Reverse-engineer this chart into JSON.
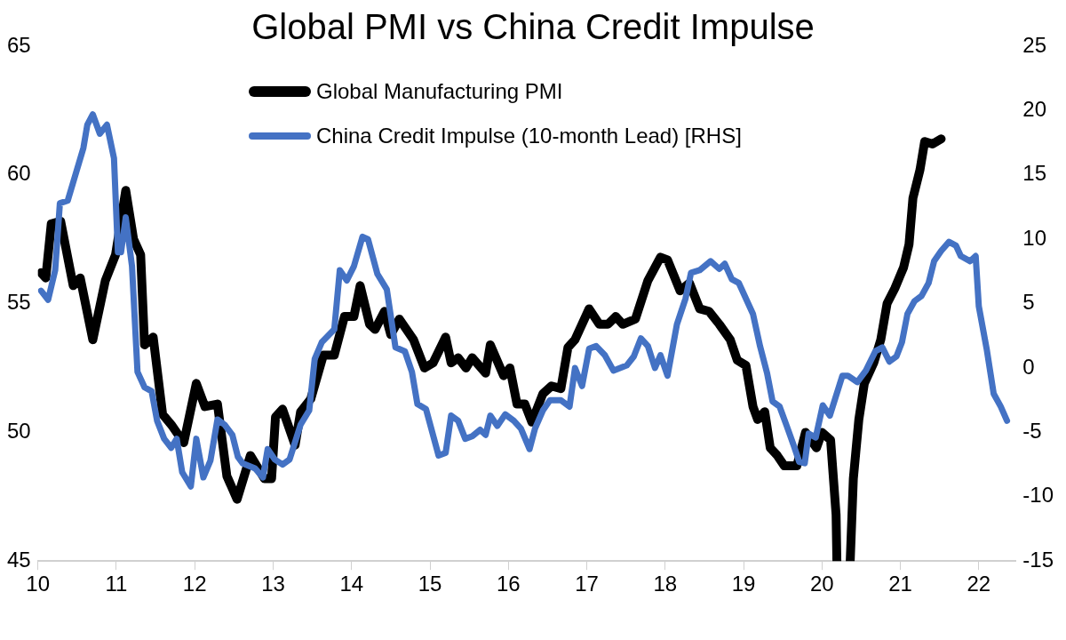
{
  "chart_data": {
    "type": "line",
    "title": "Global PMI vs China Credit Impulse",
    "legend": "top",
    "grid": false,
    "marker": "none",
    "line_style": "solid",
    "xlim": [
      10,
      22.47
    ],
    "xticks": [
      10,
      11,
      12,
      13,
      14,
      15,
      16,
      17,
      18,
      19,
      20,
      21,
      22
    ],
    "ylim": [
      45,
      65
    ],
    "yticks": [
      45,
      50,
      55,
      60,
      65
    ],
    "y2lim": [
      -15,
      25
    ],
    "y2ticks": [
      -15,
      -10,
      -5,
      0,
      5,
      10,
      15,
      20,
      25
    ],
    "series": [
      {
        "name": "Global Manufacturing PMI",
        "color": "#000000",
        "x": [
          10.04,
          10.1,
          10.17,
          10.29,
          10.45,
          10.54,
          10.7,
          10.86,
          10.99,
          11.12,
          11.22,
          11.31,
          11.36,
          11.47,
          11.59,
          11.7,
          11.86,
          12.02,
          12.13,
          12.29,
          12.41,
          12.54,
          12.71,
          12.89,
          12.98,
          13.03,
          13.12,
          13.28,
          13.35,
          13.48,
          13.64,
          13.78,
          13.91,
          14.03,
          14.11,
          14.23,
          14.3,
          14.42,
          14.5,
          14.61,
          14.79,
          14.93,
          15.04,
          15.2,
          15.27,
          15.36,
          15.46,
          15.54,
          15.71,
          15.77,
          15.94,
          16.02,
          16.11,
          16.21,
          16.3,
          16.44,
          16.55,
          16.67,
          16.76,
          16.85,
          17.03,
          17.16,
          17.27,
          17.37,
          17.46,
          17.62,
          17.78,
          17.94,
          18.03,
          18.19,
          18.31,
          18.44,
          18.56,
          18.69,
          18.83,
          18.92,
          19.03,
          19.12,
          19.18,
          19.27,
          19.34,
          19.43,
          19.52,
          19.68,
          19.79,
          19.93,
          20.0,
          20.11,
          20.18,
          20.19,
          20.27,
          20.36,
          20.4,
          20.47,
          20.54,
          20.66,
          20.75,
          20.83,
          20.93,
          21.04,
          21.11,
          21.16,
          21.25,
          21.31,
          21.41,
          21.52
        ],
        "values": [
          56.2,
          56.0,
          58.1,
          58.2,
          55.7,
          56.0,
          53.6,
          55.9,
          56.9,
          59.4,
          57.5,
          56.9,
          53.4,
          53.7,
          50.7,
          50.3,
          49.6,
          51.9,
          51.0,
          51.1,
          48.3,
          47.4,
          49.1,
          48.2,
          48.2,
          50.6,
          50.9,
          49.5,
          50.8,
          51.3,
          53.0,
          53.0,
          54.5,
          54.5,
          55.7,
          54.2,
          54.0,
          54.7,
          53.8,
          54.4,
          53.6,
          52.5,
          52.7,
          53.7,
          52.7,
          52.9,
          52.5,
          52.9,
          52.3,
          53.4,
          52.2,
          52.5,
          51.1,
          51.1,
          50.4,
          51.5,
          51.8,
          51.7,
          53.3,
          53.6,
          54.8,
          54.2,
          54.2,
          54.5,
          54.2,
          54.4,
          55.9,
          56.8,
          56.7,
          55.5,
          55.8,
          54.8,
          54.7,
          54.2,
          53.6,
          52.8,
          52.6,
          51.0,
          50.5,
          50.8,
          49.4,
          49.1,
          48.7,
          48.7,
          50.0,
          49.4,
          50.0,
          49.7,
          46.8,
          45,
          null,
          45,
          48.2,
          50.5,
          51.9,
          52.7,
          53.6,
          55.0,
          55.6,
          56.4,
          57.3,
          59.1,
          60.2,
          61.3,
          61.2,
          61.4
        ]
      },
      {
        "name": "China Credit Impulse (10-month Lead) [RHS]",
        "color": "#4472c4",
        "axis": "y2",
        "x": [
          10.04,
          10.13,
          10.22,
          10.28,
          10.38,
          10.58,
          10.63,
          10.7,
          10.79,
          10.88,
          10.97,
          11.02,
          11.06,
          11.12,
          11.2,
          11.27,
          11.36,
          11.45,
          11.52,
          11.61,
          11.7,
          11.77,
          11.84,
          11.95,
          12.02,
          12.11,
          12.2,
          12.29,
          12.38,
          12.48,
          12.55,
          12.61,
          12.77,
          12.87,
          12.93,
          13.02,
          13.12,
          13.21,
          13.35,
          13.46,
          13.53,
          13.62,
          13.78,
          13.85,
          13.94,
          14.03,
          14.14,
          14.21,
          14.33,
          14.45,
          14.56,
          14.68,
          14.77,
          14.84,
          14.95,
          15.11,
          15.2,
          15.27,
          15.36,
          15.45,
          15.54,
          15.64,
          15.71,
          15.77,
          15.86,
          15.96,
          16.07,
          16.16,
          16.27,
          16.34,
          16.44,
          16.53,
          16.67,
          16.78,
          16.85,
          16.94,
          17.03,
          17.12,
          17.23,
          17.34,
          17.51,
          17.6,
          17.69,
          17.78,
          17.87,
          17.94,
          18.03,
          18.15,
          18.26,
          18.33,
          18.44,
          18.58,
          18.69,
          18.76,
          18.85,
          18.94,
          19.12,
          19.21,
          19.3,
          19.37,
          19.46,
          19.55,
          19.65,
          19.71,
          19.78,
          19.83,
          19.92,
          20.01,
          20.1,
          20.26,
          20.33,
          20.45,
          20.56,
          20.68,
          20.77,
          20.86,
          20.95,
          21.02,
          21.09,
          21.18,
          21.27,
          21.36,
          21.43,
          21.52,
          21.62,
          21.71,
          21.77,
          21.89,
          21.96,
          22.0,
          22.1,
          22.19,
          22.28,
          22.36
        ],
        "values": [
          6.0,
          5.3,
          7.6,
          12.8,
          13.0,
          17.1,
          18.9,
          19.7,
          18.2,
          18.9,
          16.3,
          9.0,
          9.0,
          11.7,
          7.9,
          -0.3,
          -1.5,
          -1.8,
          -4.1,
          -5.5,
          -6.2,
          -5.5,
          -8.1,
          -9.2,
          -5.5,
          -8.5,
          -7.2,
          -4.0,
          -4.4,
          -5.2,
          -6.9,
          -7.4,
          -7.8,
          -8.5,
          -6.3,
          -7.1,
          -7.5,
          -7.1,
          -4.4,
          -3.3,
          0.7,
          2.0,
          3.0,
          7.6,
          6.8,
          7.9,
          10.2,
          10.0,
          7.3,
          6.1,
          1.6,
          1.3,
          -0.3,
          -2.8,
          -3.2,
          -6.8,
          -6.6,
          -3.7,
          -4.1,
          -5.5,
          -5.3,
          -4.8,
          -5.2,
          -3.7,
          -4.5,
          -3.6,
          -4.1,
          -4.7,
          -6.3,
          -4.7,
          -3.3,
          -2.5,
          -2.5,
          -3.0,
          0.0,
          -1.4,
          1.5,
          1.7,
          1.0,
          -0.2,
          0.2,
          0.9,
          2.3,
          1.7,
          0.0,
          1.0,
          -0.6,
          3.4,
          5.4,
          7.4,
          7.6,
          8.3,
          7.7,
          8.1,
          6.9,
          6.6,
          4.2,
          1.7,
          -0.4,
          -2.6,
          -3.0,
          -4.5,
          -6.2,
          -7.3,
          -7.4,
          -5.1,
          -5.4,
          -2.9,
          -3.7,
          -0.6,
          -0.6,
          -1.1,
          -0.2,
          1.3,
          1.6,
          0.5,
          0.9,
          2.0,
          4.2,
          5.2,
          5.6,
          6.6,
          8.3,
          9.1,
          9.8,
          9.5,
          8.7,
          8.3,
          8.7,
          4.8,
          1.5,
          -2.0,
          -3.0,
          -4.1
        ]
      }
    ]
  }
}
